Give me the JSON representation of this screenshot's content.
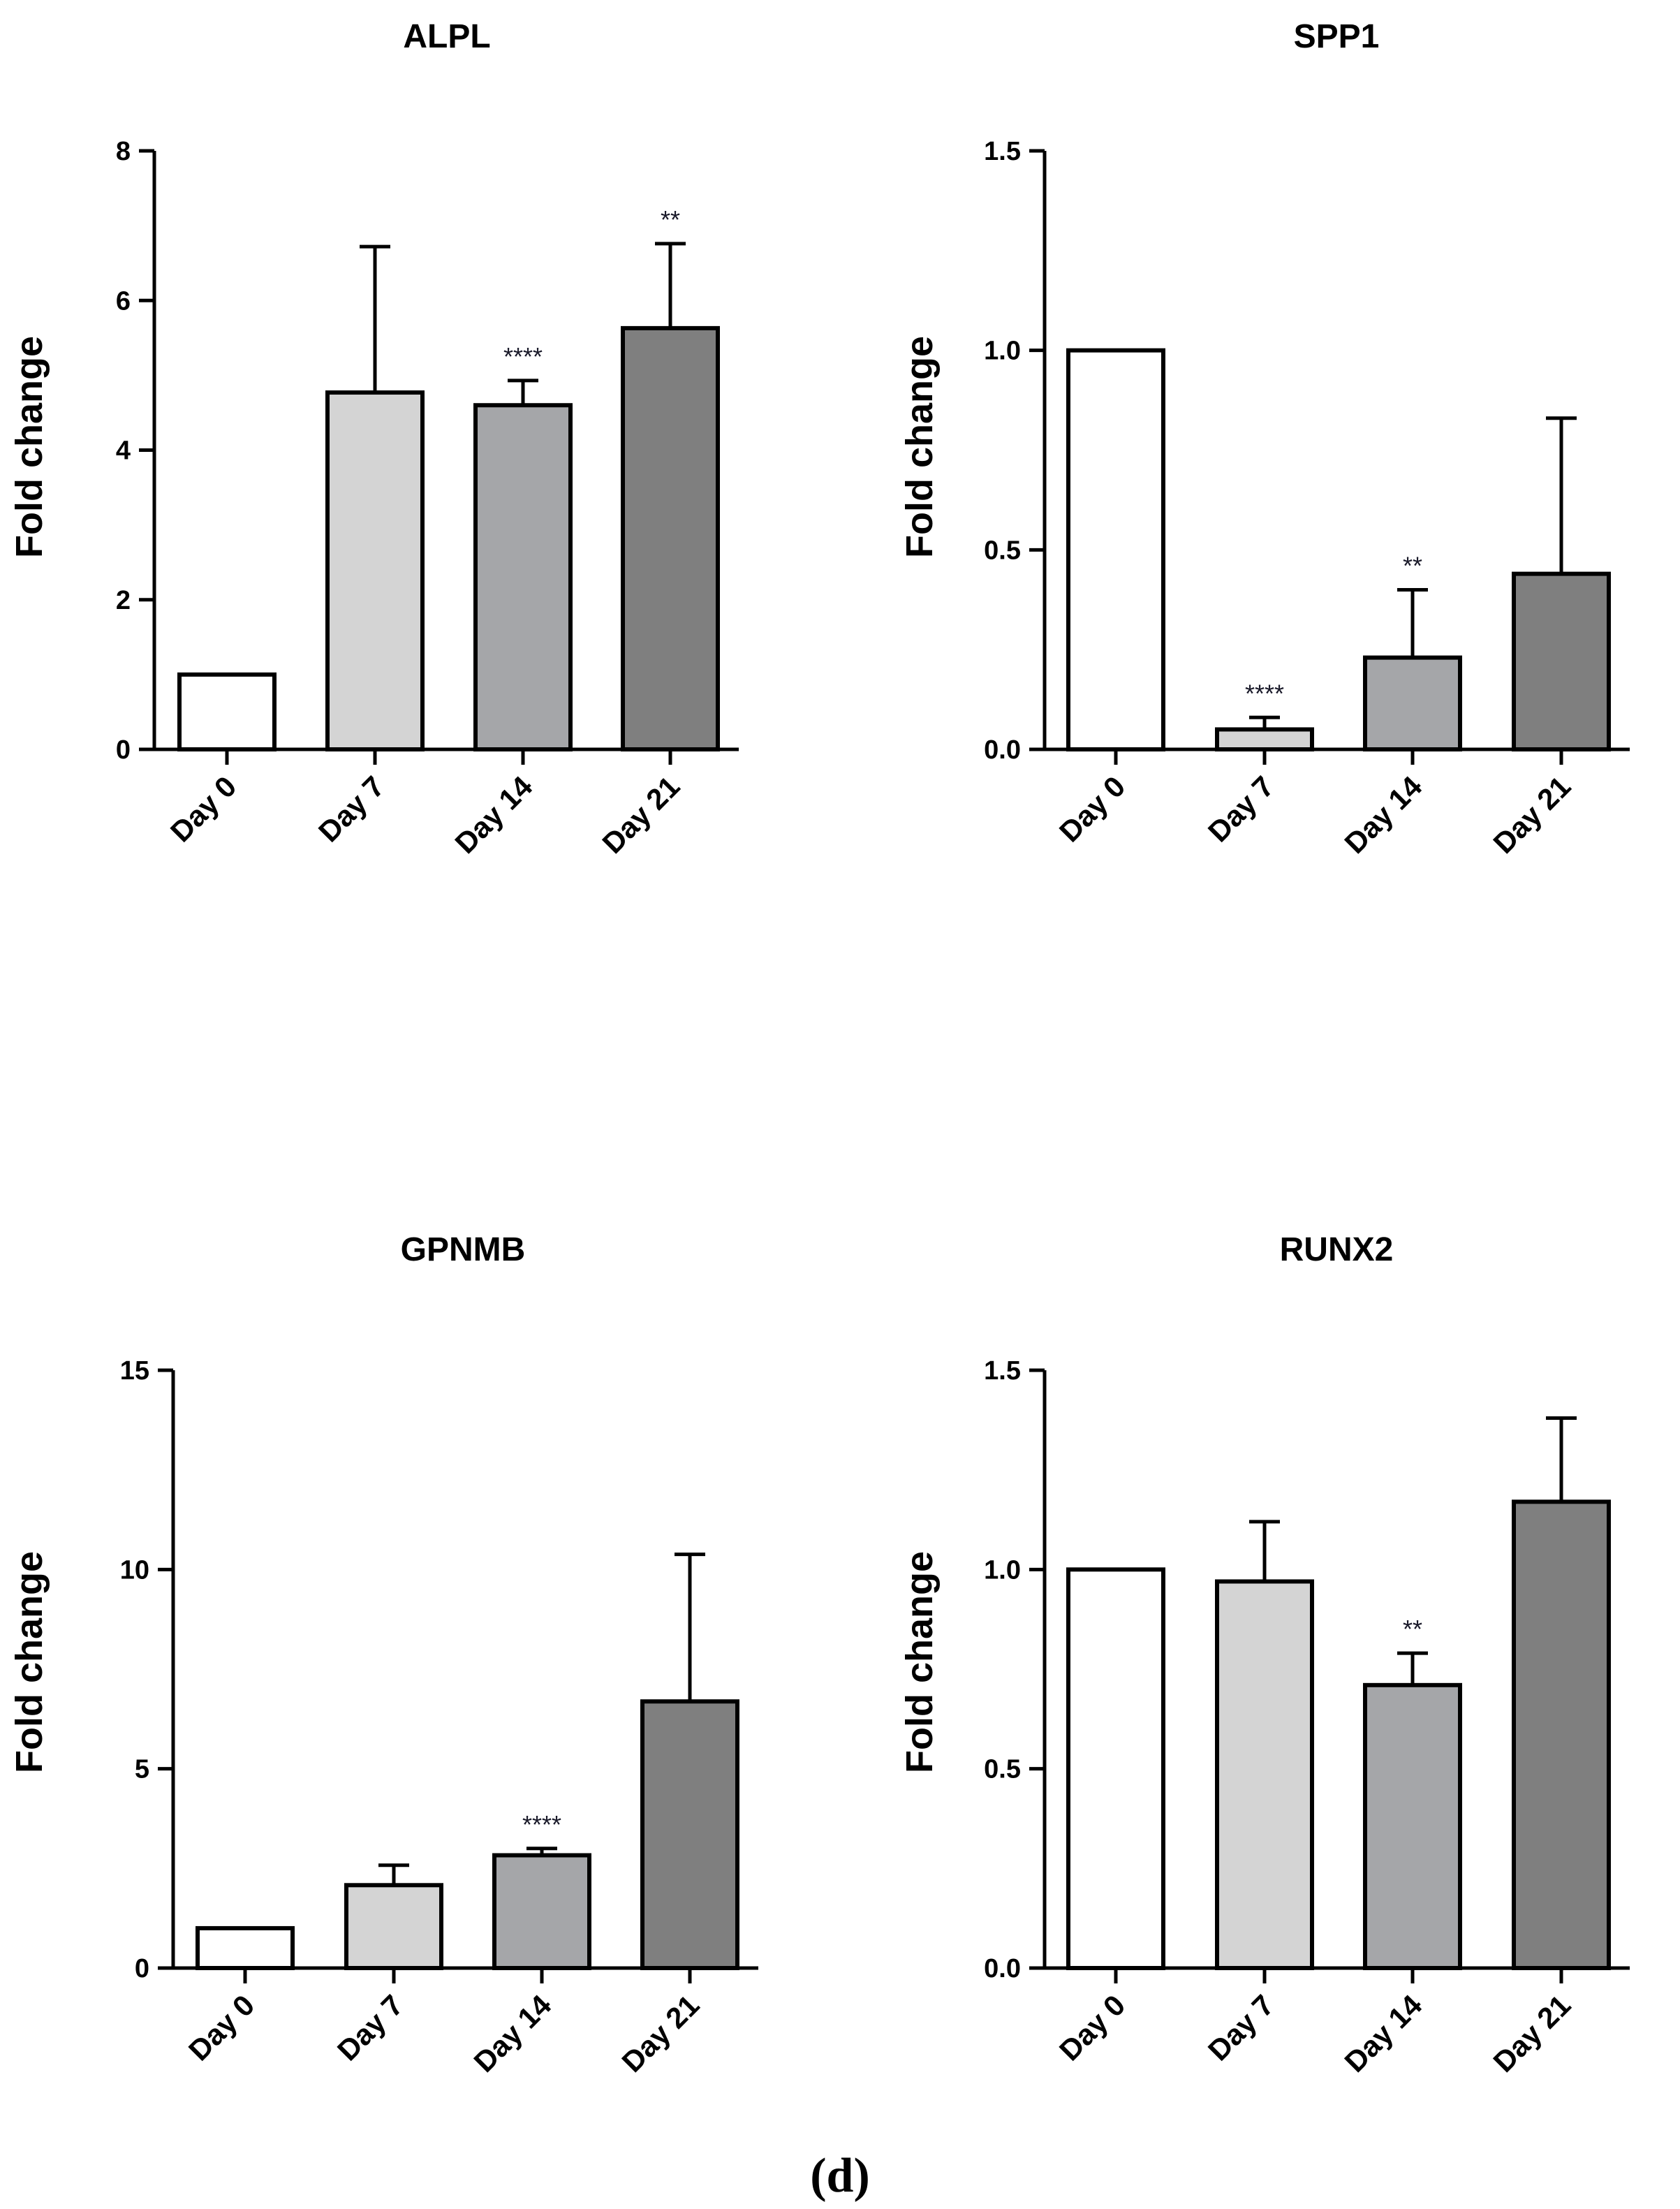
{
  "caption": "(d)",
  "colors": {
    "bar_fills": [
      "#ffffff",
      "#d4d4d4",
      "#a5a6a9",
      "#7f7f7f"
    ],
    "stroke": "#000000"
  },
  "chart_data": [
    {
      "type": "bar",
      "title": "ALPL",
      "ylabel": "Fold change",
      "xlabel": "",
      "categories": [
        "Day 0",
        "Day 7",
        "Day 14",
        "Day 21"
      ],
      "values": [
        1.0,
        4.77,
        4.6,
        5.63
      ],
      "errors": [
        0,
        1.95,
        0.33,
        1.13
      ],
      "significance": [
        "",
        "",
        "****",
        "**"
      ],
      "ylim": [
        0,
        8
      ],
      "yticks": [
        0,
        2,
        4,
        6,
        8
      ],
      "ytick_labels": [
        "0",
        "2",
        "4",
        "6",
        "8"
      ]
    },
    {
      "type": "bar",
      "title": "SPP1",
      "ylabel": "Fold change",
      "xlabel": "",
      "categories": [
        "Day 0",
        "Day 7",
        "Day 14",
        "Day 21"
      ],
      "values": [
        1.0,
        0.05,
        0.23,
        0.44
      ],
      "errors": [
        0,
        0.03,
        0.17,
        0.39
      ],
      "significance": [
        "",
        "****",
        "**",
        ""
      ],
      "ylim": [
        0,
        1.5
      ],
      "yticks": [
        0,
        0.5,
        1.0,
        1.5
      ],
      "ytick_labels": [
        "0.0",
        "0.5",
        "1.0",
        "1.5"
      ]
    },
    {
      "type": "bar",
      "title": "GPNMB",
      "ylabel": "Fold change",
      "xlabel": "",
      "categories": [
        "Day 0",
        "Day 7",
        "Day 14",
        "Day 21"
      ],
      "values": [
        1.0,
        2.08,
        2.83,
        6.69
      ],
      "errors": [
        0,
        0.5,
        0.17,
        3.69
      ],
      "significance": [
        "",
        "",
        "****",
        ""
      ],
      "ylim": [
        0,
        15
      ],
      "yticks": [
        0,
        5,
        10,
        15
      ],
      "ytick_labels": [
        "0",
        "5",
        "10",
        "15"
      ]
    },
    {
      "type": "bar",
      "title": "RUNX2",
      "ylabel": "Fold change",
      "xlabel": "",
      "categories": [
        "Day 0",
        "Day 7",
        "Day 14",
        "Day 21"
      ],
      "values": [
        1.0,
        0.97,
        0.71,
        1.17
      ],
      "errors": [
        0,
        0.15,
        0.08,
        0.21
      ],
      "significance": [
        "",
        "",
        "**",
        ""
      ],
      "ylim": [
        0,
        1.5
      ],
      "yticks": [
        0,
        0.5,
        1.0,
        1.5
      ],
      "ytick_labels": [
        "0.0",
        "0.5",
        "1.0",
        "1.5"
      ]
    }
  ]
}
